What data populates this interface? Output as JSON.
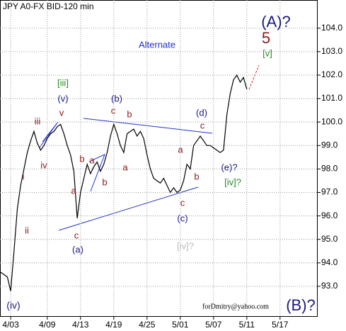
{
  "chart_data": {
    "type": "line",
    "title": "JPY A0-FX BID-120 min",
    "categories": [
      null,
      null,
      null,
      "4/03",
      null,
      null,
      null,
      null,
      null,
      null,
      null,
      null,
      null,
      null,
      "4/09",
      null,
      null,
      null,
      null,
      null,
      null,
      null,
      null,
      null,
      "4/13",
      null,
      null,
      null,
      null,
      null,
      null,
      null,
      null,
      null,
      "4/19",
      null,
      null,
      null,
      null,
      null,
      null,
      null,
      null,
      null,
      "4/25",
      null,
      null,
      null,
      null,
      null,
      null,
      null,
      null,
      null,
      "5/01",
      null,
      null,
      null,
      null,
      null,
      null,
      null,
      null,
      null,
      "5/07",
      null,
      null,
      null,
      null,
      null,
      null,
      null,
      null,
      null,
      "5/11",
      null,
      null,
      null,
      null,
      null,
      null,
      null,
      null,
      null,
      "5/17",
      null,
      null,
      null,
      null,
      null,
      null,
      null,
      null,
      null,
      null,
      null
    ],
    "values": [
      93.6,
      93.5,
      93.4,
      92.8,
      94.5,
      96.3,
      97.3,
      98.0,
      98.7,
      99.2,
      99.6,
      99.1,
      98.8,
      99.0,
      99.3,
      99.5,
      99.6,
      99.8,
      99.9,
      99.5,
      99.0,
      98.6,
      97.9,
      95.9,
      97.0,
      97.6,
      98.2,
      97.8,
      98.1,
      98.3,
      97.9,
      98.2,
      98.7,
      99.4,
      99.9,
      99.5,
      99.0,
      98.7,
      99.5,
      99.6,
      99.7,
      99.4,
      99.6,
      99.3,
      98.6,
      98.0,
      97.6,
      97.5,
      97.4,
      97.6,
      97.3,
      97.0,
      97.2,
      97.0,
      97.1,
      97.5,
      98.2,
      98.0,
      99.0,
      99.2,
      99.4,
      99.2,
      99.0,
      99.0,
      98.9,
      98.8,
      98.7,
      98.8,
      100.3,
      101.2,
      101.8,
      102.0,
      101.7,
      101.9,
      101.4,
      null,
      null,
      null,
      null,
      null,
      null,
      null,
      null,
      null,
      null,
      null,
      null,
      null,
      null,
      null,
      null,
      null,
      null,
      null,
      null,
      null
    ],
    "color": "#000000",
    "ylim": [
      91.7,
      105.2
    ],
    "yticks": [
      {
        "value": 93,
        "label": "93.0"
      },
      {
        "value": 94,
        "label": "94.0"
      },
      {
        "value": 95,
        "label": "95.0"
      },
      {
        "value": 96,
        "label": "96.0"
      },
      {
        "value": 97,
        "label": "97.0"
      },
      {
        "value": 98,
        "label": "98.0"
      },
      {
        "value": 99,
        "label": "99.0"
      },
      {
        "value": 100,
        "label": "100.0"
      },
      {
        "value": 101,
        "label": "101.0"
      },
      {
        "value": 102,
        "label": "102.0"
      },
      {
        "value": 103,
        "label": "103.0"
      },
      {
        "value": 104,
        "label": "104.0"
      }
    ],
    "grid": true,
    "annotations": [
      "(A)?",
      "5",
      "[v]",
      "[iii]",
      "(v)",
      "(b)",
      "c",
      "b",
      "iii",
      "v",
      "(d)",
      "c",
      "iv",
      "a",
      "b",
      "a",
      "a",
      "i",
      "b",
      "a",
      "b",
      "(e)?",
      "[iv]?",
      "c",
      "(c)",
      "ii",
      "c",
      "(a)",
      "[iv]?",
      "(iv)",
      "forDmitry@yahoo.com",
      "(B)?",
      "Alternate"
    ]
  }
}
